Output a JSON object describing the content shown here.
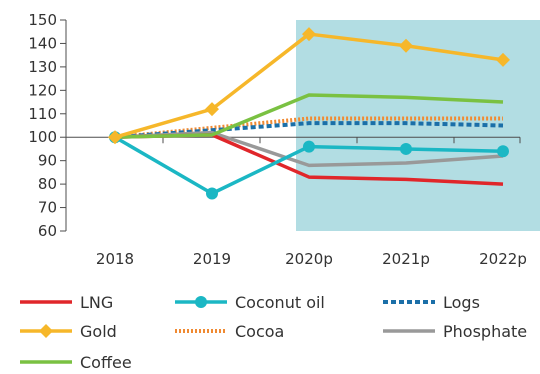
{
  "chart_data": {
    "type": "line",
    "categories": [
      "2018",
      "2019",
      "2020p",
      "2021p",
      "2022p"
    ],
    "ylim": [
      60,
      150
    ],
    "yticks": [
      60,
      70,
      80,
      90,
      100,
      110,
      120,
      130,
      140,
      150
    ],
    "grid": false,
    "legend_position": "bottom",
    "projection_shading": {
      "from": "2020p",
      "to": "2022p",
      "color": "#b2dde3"
    },
    "series": [
      {
        "name": "LNG",
        "values": [
          100,
          101,
          83,
          82,
          80
        ],
        "color": "#e0262a",
        "style": "solid",
        "marker": "none"
      },
      {
        "name": "Gold",
        "values": [
          100,
          112,
          144,
          139,
          133
        ],
        "color": "#f6b72a",
        "style": "solid",
        "marker": "diamond"
      },
      {
        "name": "Coffee",
        "values": [
          100,
          101,
          118,
          117,
          115
        ],
        "color": "#7ac142",
        "style": "solid",
        "marker": "none"
      },
      {
        "name": "Coconut oil",
        "values": [
          100,
          76,
          96,
          95,
          94
        ],
        "color": "#1bb7c4",
        "style": "solid",
        "marker": "circle"
      },
      {
        "name": "Cocoa",
        "values": [
          100,
          104,
          108,
          108,
          108
        ],
        "color": "#f08a32",
        "style": "dotted",
        "marker": "none"
      },
      {
        "name": "Logs",
        "values": [
          100,
          103,
          106,
          106,
          105
        ],
        "color": "#1b6fa8",
        "style": "dashed",
        "marker": "none"
      },
      {
        "name": "Phosphate",
        "values": [
          100,
          102,
          88,
          89,
          92
        ],
        "color": "#999999",
        "style": "solid",
        "marker": "none"
      }
    ]
  }
}
